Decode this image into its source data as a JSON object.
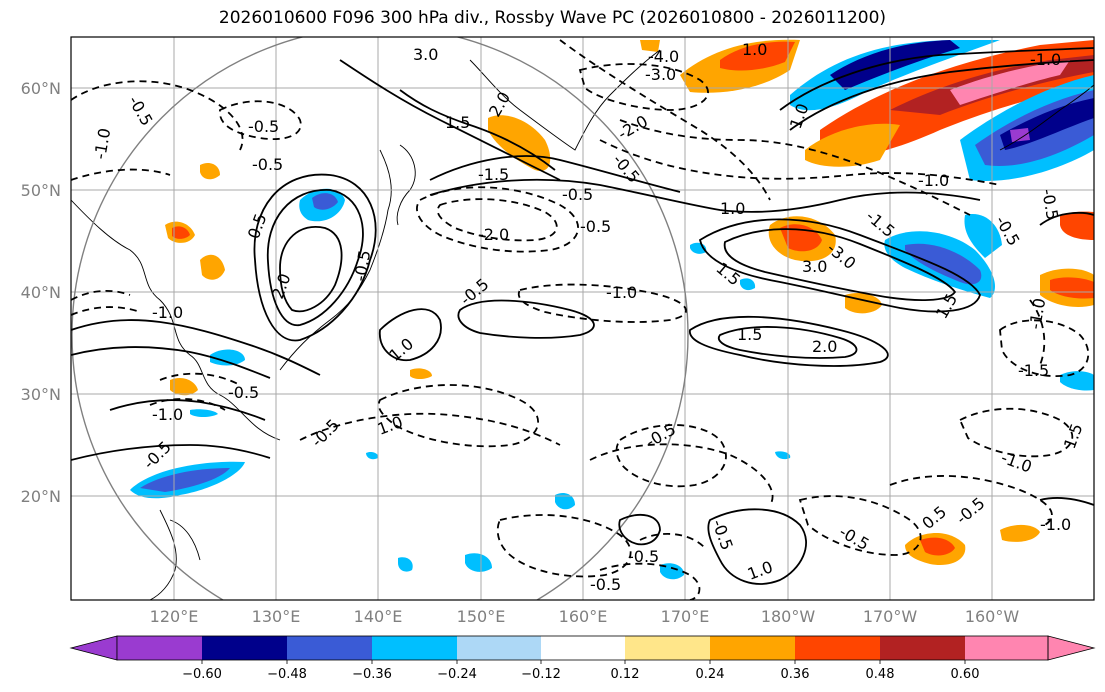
{
  "title": "2026010600 F096 300 hPa div., Rossby Wave PC (2026010800 - 2026011200)",
  "map": {
    "lat_ticks": [
      "60°N",
      "50°N",
      "40°N",
      "30°N",
      "20°N"
    ],
    "lon_ticks": [
      "120°E",
      "130°E",
      "140°E",
      "150°E",
      "160°E",
      "170°E",
      "180°W",
      "170°W",
      "160°W"
    ],
    "contour_labels": [
      {
        "text": "3.0"
      },
      {
        "text": "-4.0"
      },
      {
        "text": "-3.0"
      },
      {
        "text": "1.0"
      },
      {
        "text": "-1.0"
      },
      {
        "text": "-0.5"
      },
      {
        "text": "-0.5"
      },
      {
        "text": "-1.0"
      },
      {
        "text": "-0.5"
      },
      {
        "text": "1.5"
      },
      {
        "text": "2.0"
      },
      {
        "text": "-2.0"
      },
      {
        "text": "-0.5"
      },
      {
        "text": "-1.5"
      },
      {
        "text": "-0.5"
      },
      {
        "text": "-2.0"
      },
      {
        "text": "-0.5"
      },
      {
        "text": "1.0"
      },
      {
        "text": "-1.0"
      },
      {
        "text": "-1.5"
      },
      {
        "text": "-0.5"
      },
      {
        "text": "1.5"
      },
      {
        "text": "3.0"
      },
      {
        "text": "-3.0"
      },
      {
        "text": "1.5"
      },
      {
        "text": "-1.0"
      },
      {
        "text": "1.5"
      },
      {
        "text": "2.0"
      },
      {
        "text": "-1.5"
      },
      {
        "text": "-1.0"
      },
      {
        "text": "-0.5"
      },
      {
        "text": "1.0"
      },
      {
        "text": "2.0"
      },
      {
        "text": "-0.5"
      },
      {
        "text": "-1.0"
      },
      {
        "text": "-0.5"
      },
      {
        "text": "-1.0"
      },
      {
        "text": "-0.5"
      },
      {
        "text": "-0.5"
      },
      {
        "text": "0.5"
      },
      {
        "text": "-0.5"
      },
      {
        "text": "1.0"
      },
      {
        "text": "-0.5"
      },
      {
        "text": "-0.5"
      },
      {
        "text": "-0.5"
      },
      {
        "text": "1.0"
      },
      {
        "text": "-0.5"
      },
      {
        "text": "-1.0"
      },
      {
        "text": "1.5"
      },
      {
        "text": "-1.0"
      },
      {
        "text": "0.5"
      },
      {
        "text": "-0.5"
      },
      {
        "text": "1.0"
      },
      {
        "text": "-0.5"
      }
    ]
  },
  "colorbar": {
    "ticks": [
      "−0.60",
      "−0.48",
      "−0.36",
      "−0.24",
      "−0.12",
      "0.12",
      "0.24",
      "0.36",
      "0.48",
      "0.60"
    ],
    "colors": [
      "#9a3bd0",
      "#00008b",
      "#3a5bd6",
      "#00bfff",
      "#add8f6",
      "#ffffff",
      "#ffe68a",
      "#ffa500",
      "#ff4500",
      "#b22222",
      "#ff85b0"
    ]
  },
  "colors": {
    "frame": "#000000",
    "grid": "#a9a9a9",
    "tick_label": "#808080",
    "circle": "#808080"
  }
}
